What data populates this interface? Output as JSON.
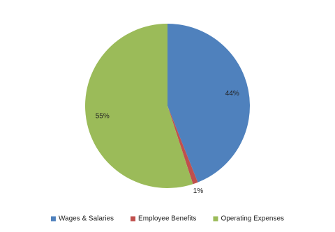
{
  "chart_data": {
    "type": "pie",
    "categories": [
      "Wages & Salaries",
      "Employee Benefits",
      "Operating Expenses"
    ],
    "values": [
      44,
      1,
      55
    ],
    "value_labels": [
      "44%",
      "1%",
      "55%"
    ],
    "colors": [
      "#4f81bd",
      "#c0504d",
      "#9bbb59"
    ],
    "legend": "bottom"
  }
}
